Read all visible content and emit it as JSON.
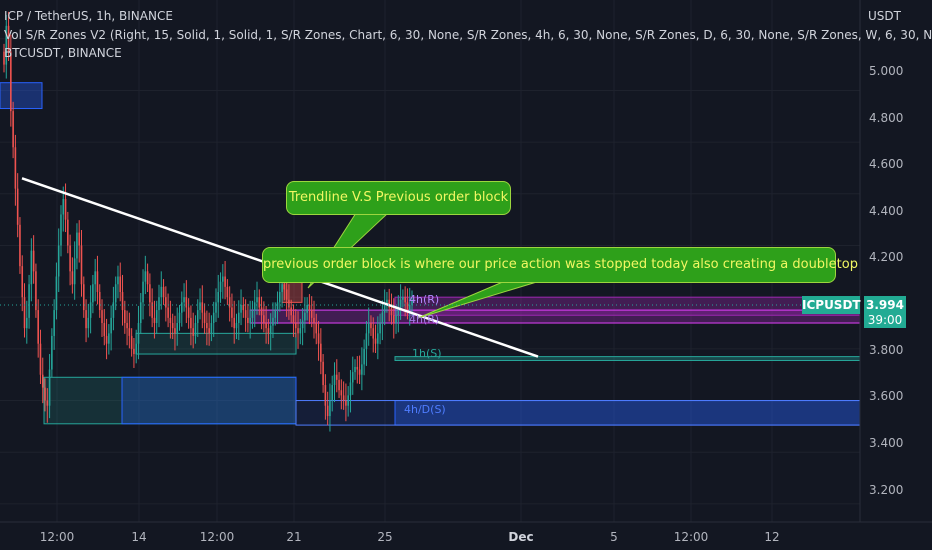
{
  "legend": {
    "symbol_line": "ICP / TetherUS, 1h, BINANCE",
    "indicator_line": "Vol S/R Zones V2 (Right, 15, Solid, 1, Solid, 1, S/R Zones, Chart, 6, 30, None, S/R Zones, 4h, 6, 30, None, S/R Zones, D, 6, 30, None, S/R Zones, W, 6, 30, None)",
    "compare_line": "BTCUSDT, BINANCE"
  },
  "price_axis": {
    "unit": "USDT",
    "ticks": [
      "5.000",
      "4.800",
      "4.600",
      "4.400",
      "4.200",
      "3.800",
      "3.600",
      "3.400",
      "3.200"
    ]
  },
  "time_axis": {
    "ticks": [
      "12:00",
      "14",
      "12:00",
      "21",
      "25",
      "Dec",
      "5",
      "12:00",
      "12"
    ]
  },
  "last_price": {
    "ticker": "ICPUSDT",
    "price": "3.994",
    "countdown": "39:00"
  },
  "annotations": {
    "callout_1": "Trendline V.S Previous order block",
    "callout_2": "previous order block is where our price action was stopped today  also creating a doubletop",
    "zone_4h_r": "4h(R)",
    "zone_4h_r_2": "4h(R)",
    "zone_1h_s": "1h(S)",
    "zone_4h_d_s": "4h/D(S)"
  },
  "colors": {
    "background": "#131722",
    "up": "#26a69a",
    "down": "#ef5350",
    "resistance_zone": "#9c27b0",
    "support_zone": "#26a69a",
    "blue_zone": "#2962ff",
    "callout_bg": "#2ea01a",
    "callout_text": "#f2f763",
    "trendline": "#ffffff"
  },
  "chart_data": {
    "type": "candlestick",
    "symbol": "ICP / TetherUS",
    "timeframe": "1h",
    "exchange": "BINANCE",
    "ylim": [
      3.13,
      5.15
    ],
    "last_price": 3.994,
    "trendline": {
      "from": {
        "x": "Nov 10",
        "y": 4.46
      },
      "to": {
        "x": "Nov 28",
        "y": 3.77
      }
    },
    "zones": [
      {
        "label": "4h(R)",
        "low": 3.93,
        "high": 4.0,
        "color": "#9c27b0"
      },
      {
        "label": "1h(S)",
        "low": 3.755,
        "high": 3.77,
        "color": "#26a69a"
      },
      {
        "label": "4h/D(S)",
        "low": 3.505,
        "high": 3.6,
        "color": "#2962ff"
      }
    ],
    "series": [
      {
        "values": [
          4.9,
          5.05,
          4.95,
          4.72,
          4.58,
          4.42,
          4.28,
          4.12,
          4.0,
          3.88,
          3.92,
          4.05,
          4.18,
          4.1,
          3.95,
          3.82,
          3.7,
          3.65,
          3.6,
          3.58,
          3.72,
          3.85,
          3.95,
          4.08,
          4.2,
          4.32,
          4.38,
          4.3,
          4.2,
          4.1,
          4.05,
          4.15,
          4.25,
          4.2,
          4.05,
          3.95,
          3.88,
          3.92,
          3.98,
          4.05,
          4.1,
          4.02,
          3.95,
          3.9,
          3.85,
          3.82,
          3.86,
          3.92,
          3.98,
          4.05,
          4.08,
          4.02,
          3.95,
          3.9,
          3.88,
          3.85,
          3.8,
          3.78,
          3.82,
          3.9,
          3.98,
          4.06,
          4.1,
          4.05,
          3.98,
          3.92,
          3.9,
          3.95,
          4.0,
          4.04,
          4.0,
          3.96,
          3.92,
          3.9,
          3.88,
          3.86,
          3.9,
          3.94,
          3.98,
          4.0,
          3.96,
          3.92,
          3.88,
          3.85,
          3.9,
          3.95,
          3.98,
          3.94,
          3.9,
          3.88,
          3.86,
          3.9,
          3.94,
          3.98,
          4.02,
          4.06,
          4.08,
          4.04,
          4.0,
          3.96,
          3.92,
          3.88,
          3.9,
          3.94,
          3.97,
          3.95,
          3.92,
          3.9,
          3.92,
          3.95,
          3.98,
          4.0,
          3.96,
          3.93,
          3.9,
          3.88,
          3.86,
          3.89,
          3.92,
          3.95,
          3.98,
          4.02,
          4.05,
          4.03,
          3.99,
          3.96,
          3.93,
          3.9,
          3.88,
          3.86,
          3.88,
          3.91,
          3.94,
          3.97,
          3.95,
          3.92,
          3.9,
          3.86,
          3.82,
          3.75,
          3.66,
          3.58,
          3.54,
          3.6,
          3.66,
          3.7,
          3.68,
          3.64,
          3.62,
          3.6,
          3.58,
          3.62,
          3.67,
          3.71,
          3.73,
          3.72,
          3.7,
          3.74,
          3.8,
          3.86,
          3.9,
          3.88,
          3.84,
          3.82,
          3.86,
          3.9,
          3.94,
          3.97,
          3.99,
          3.96,
          3.93,
          3.9,
          3.93,
          3.96,
          3.99,
          4.0,
          3.98,
          3.95,
          3.97,
          3.99
        ]
      }
    ]
  }
}
